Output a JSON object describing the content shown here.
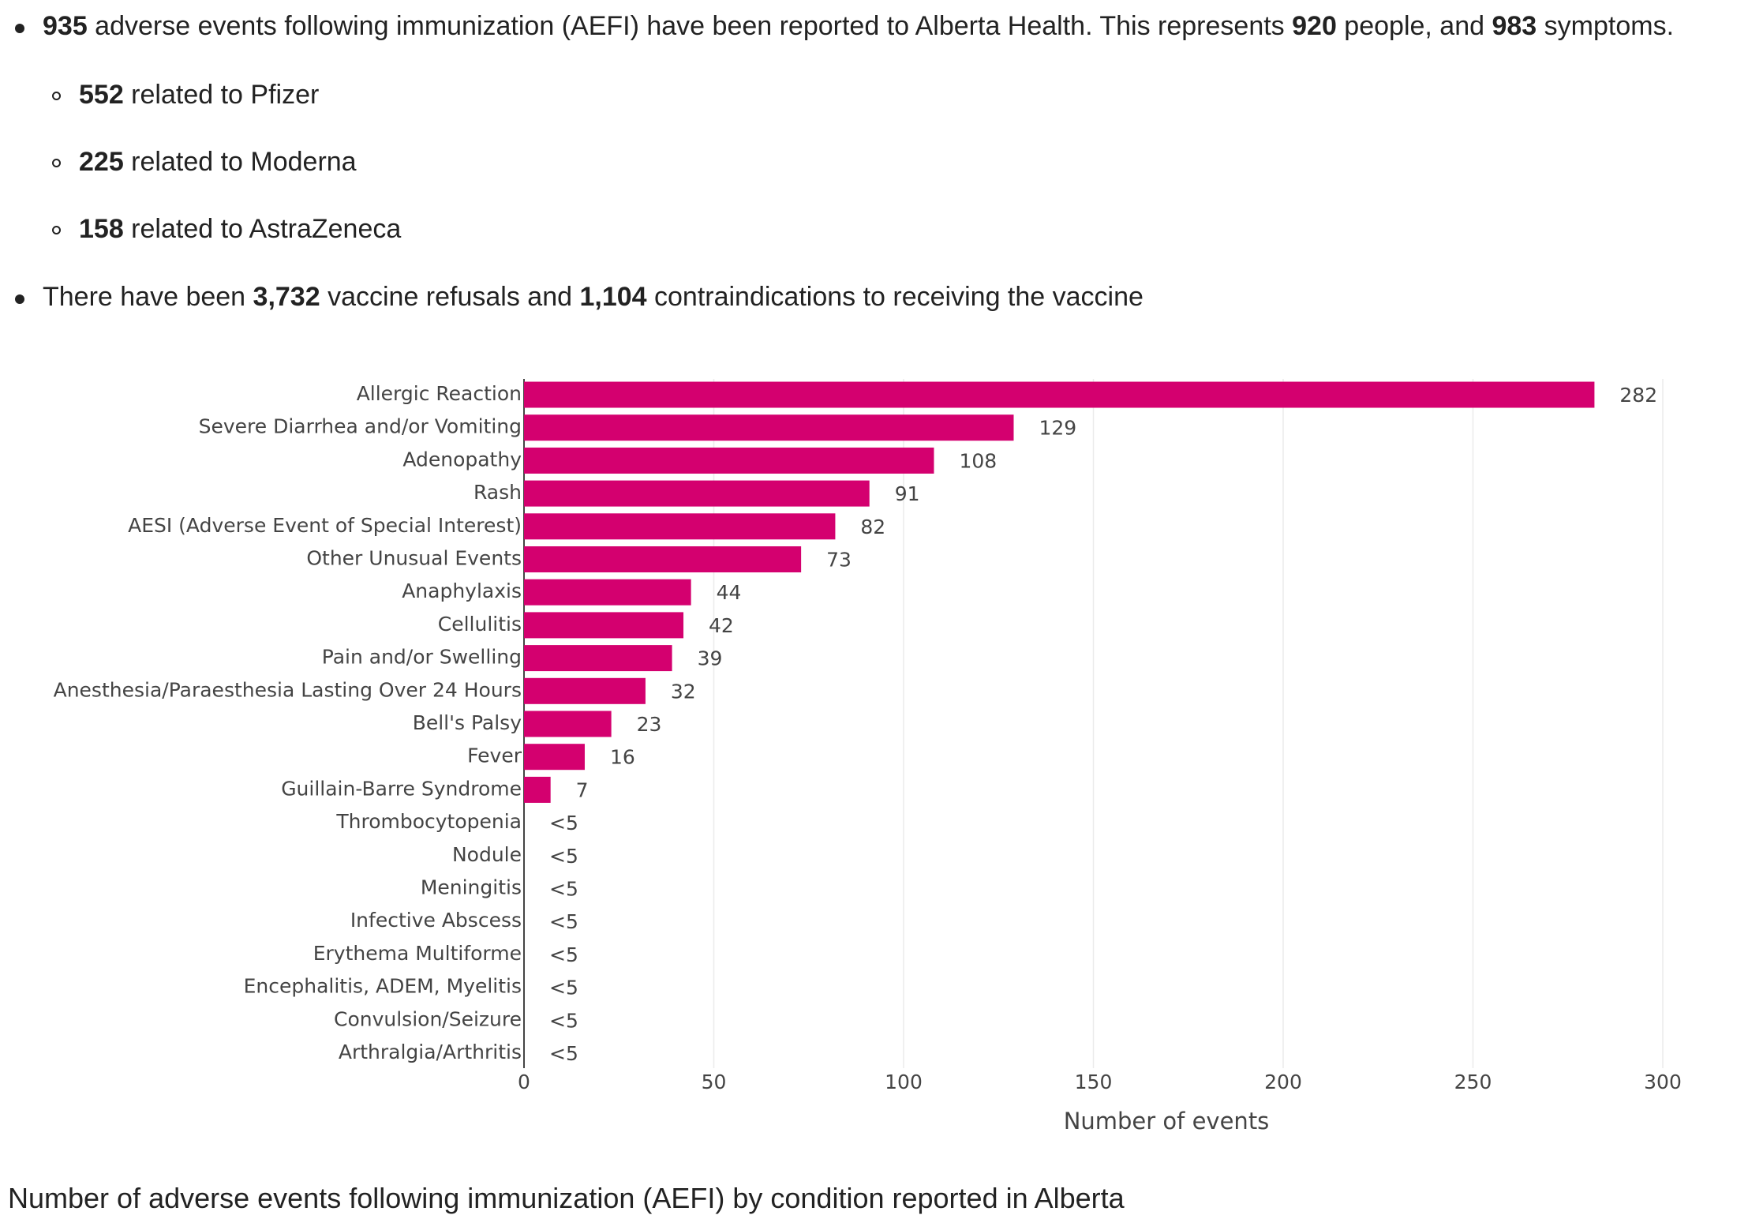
{
  "bullets": [
    {
      "parts": [
        "935",
        " adverse events following immunization (AEFI) have been reported to Alberta Health. This represents ",
        "920",
        " people, and ",
        "983",
        " symptoms."
      ],
      "sub": [
        [
          "552",
          " related to Pfizer"
        ],
        [
          "225",
          " related to Moderna"
        ],
        [
          "158",
          " related to AstraZeneca"
        ]
      ]
    },
    {
      "parts": [
        "There have been ",
        "3,732",
        " vaccine refusals and ",
        "1,104",
        " contraindications to receiving the vaccine"
      ]
    }
  ],
  "chart_data": {
    "type": "bar",
    "orientation": "horizontal",
    "categories": [
      "Allergic Reaction",
      "Severe Diarrhea and/or Vomiting",
      "Adenopathy",
      "Rash",
      "AESI (Adverse Event of Special Interest)",
      "Other Unusual Events",
      "Anaphylaxis",
      "Cellulitis",
      "Pain and/or Swelling",
      "Anesthesia/Paraesthesia Lasting Over 24 Hours",
      "Bell's Palsy",
      "Fever",
      "Guillain-Barre Syndrome",
      "Thrombocytopenia",
      "Nodule",
      "Meningitis",
      "Infective Abscess",
      "Erythema Multiforme",
      "Encephalitis, ADEM, Myelitis",
      "Convulsion/Seizure",
      "Arthralgia/Arthritis"
    ],
    "values": [
      282,
      129,
      108,
      91,
      82,
      73,
      44,
      42,
      39,
      32,
      23,
      16,
      7,
      null,
      null,
      null,
      null,
      null,
      null,
      null,
      null
    ],
    "value_labels": [
      null,
      null,
      null,
      null,
      null,
      null,
      null,
      null,
      null,
      null,
      null,
      null,
      null,
      "<5",
      "<5",
      "<5",
      "<5",
      "<5",
      "<5",
      "<5",
      "<5"
    ],
    "color": "#d4006f",
    "xlim": [
      0,
      300
    ],
    "xticks": [
      0,
      50,
      100,
      150,
      200,
      250,
      300
    ],
    "grid": true,
    "xlabel": "Number of events"
  },
  "caption": "Number of adverse events following immunization (AEFI) by condition reported in Alberta"
}
